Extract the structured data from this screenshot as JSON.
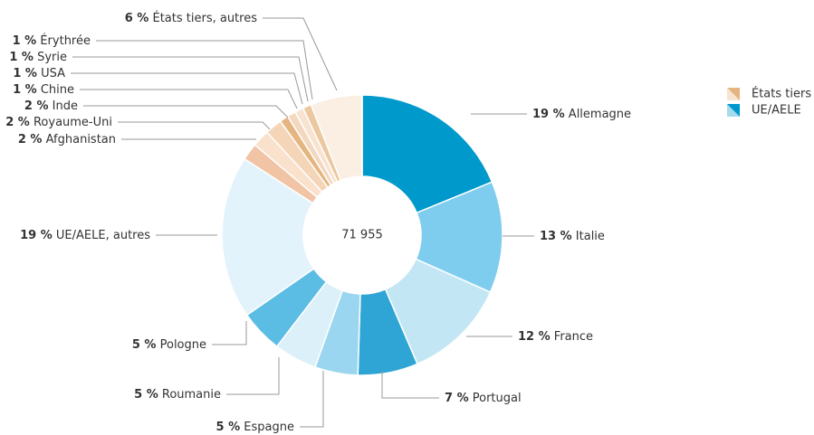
{
  "chart_data": {
    "type": "pie",
    "donut": true,
    "center_label": "71 955",
    "categories": [
      "Allemagne",
      "Italie",
      "France",
      "Portugal",
      "Espagne",
      "Roumanie",
      "Pologne",
      "UE/AELE, autres",
      "Afghanistan",
      "Royaume-Uni",
      "Inde",
      "Chine",
      "USA",
      "Syrie",
      "Érythrée",
      "États tiers, autres"
    ],
    "values": [
      19,
      13,
      12,
      7,
      5,
      5,
      5,
      19,
      2,
      2,
      2,
      1,
      1,
      1,
      1,
      6
    ],
    "value_labels": [
      "19 %",
      "13 %",
      "12 %",
      "7 %",
      "5 %",
      "5 %",
      "5 %",
      "19 %",
      "2 %",
      "2 %",
      "2 %",
      "1 %",
      "1 %",
      "1 %",
      "1 %",
      "6 %"
    ],
    "colors": [
      "#0099cc",
      "#7fcdee",
      "#c3e6f4",
      "#2fa5d6",
      "#9ad6ef",
      "#dbf0f9",
      "#5bbde3",
      "#e3f3fb",
      "#f0c4a4",
      "#f9e1cc",
      "#f5d5b8",
      "#e5b580",
      "#f3d8c0",
      "#f7e3d0",
      "#ecc8a0",
      "#fbeee2"
    ],
    "legend": [
      {
        "name": "États tiers",
        "color": "#e5b580"
      },
      {
        "name": "UE/AELE",
        "color": "#0099cc"
      }
    ]
  }
}
